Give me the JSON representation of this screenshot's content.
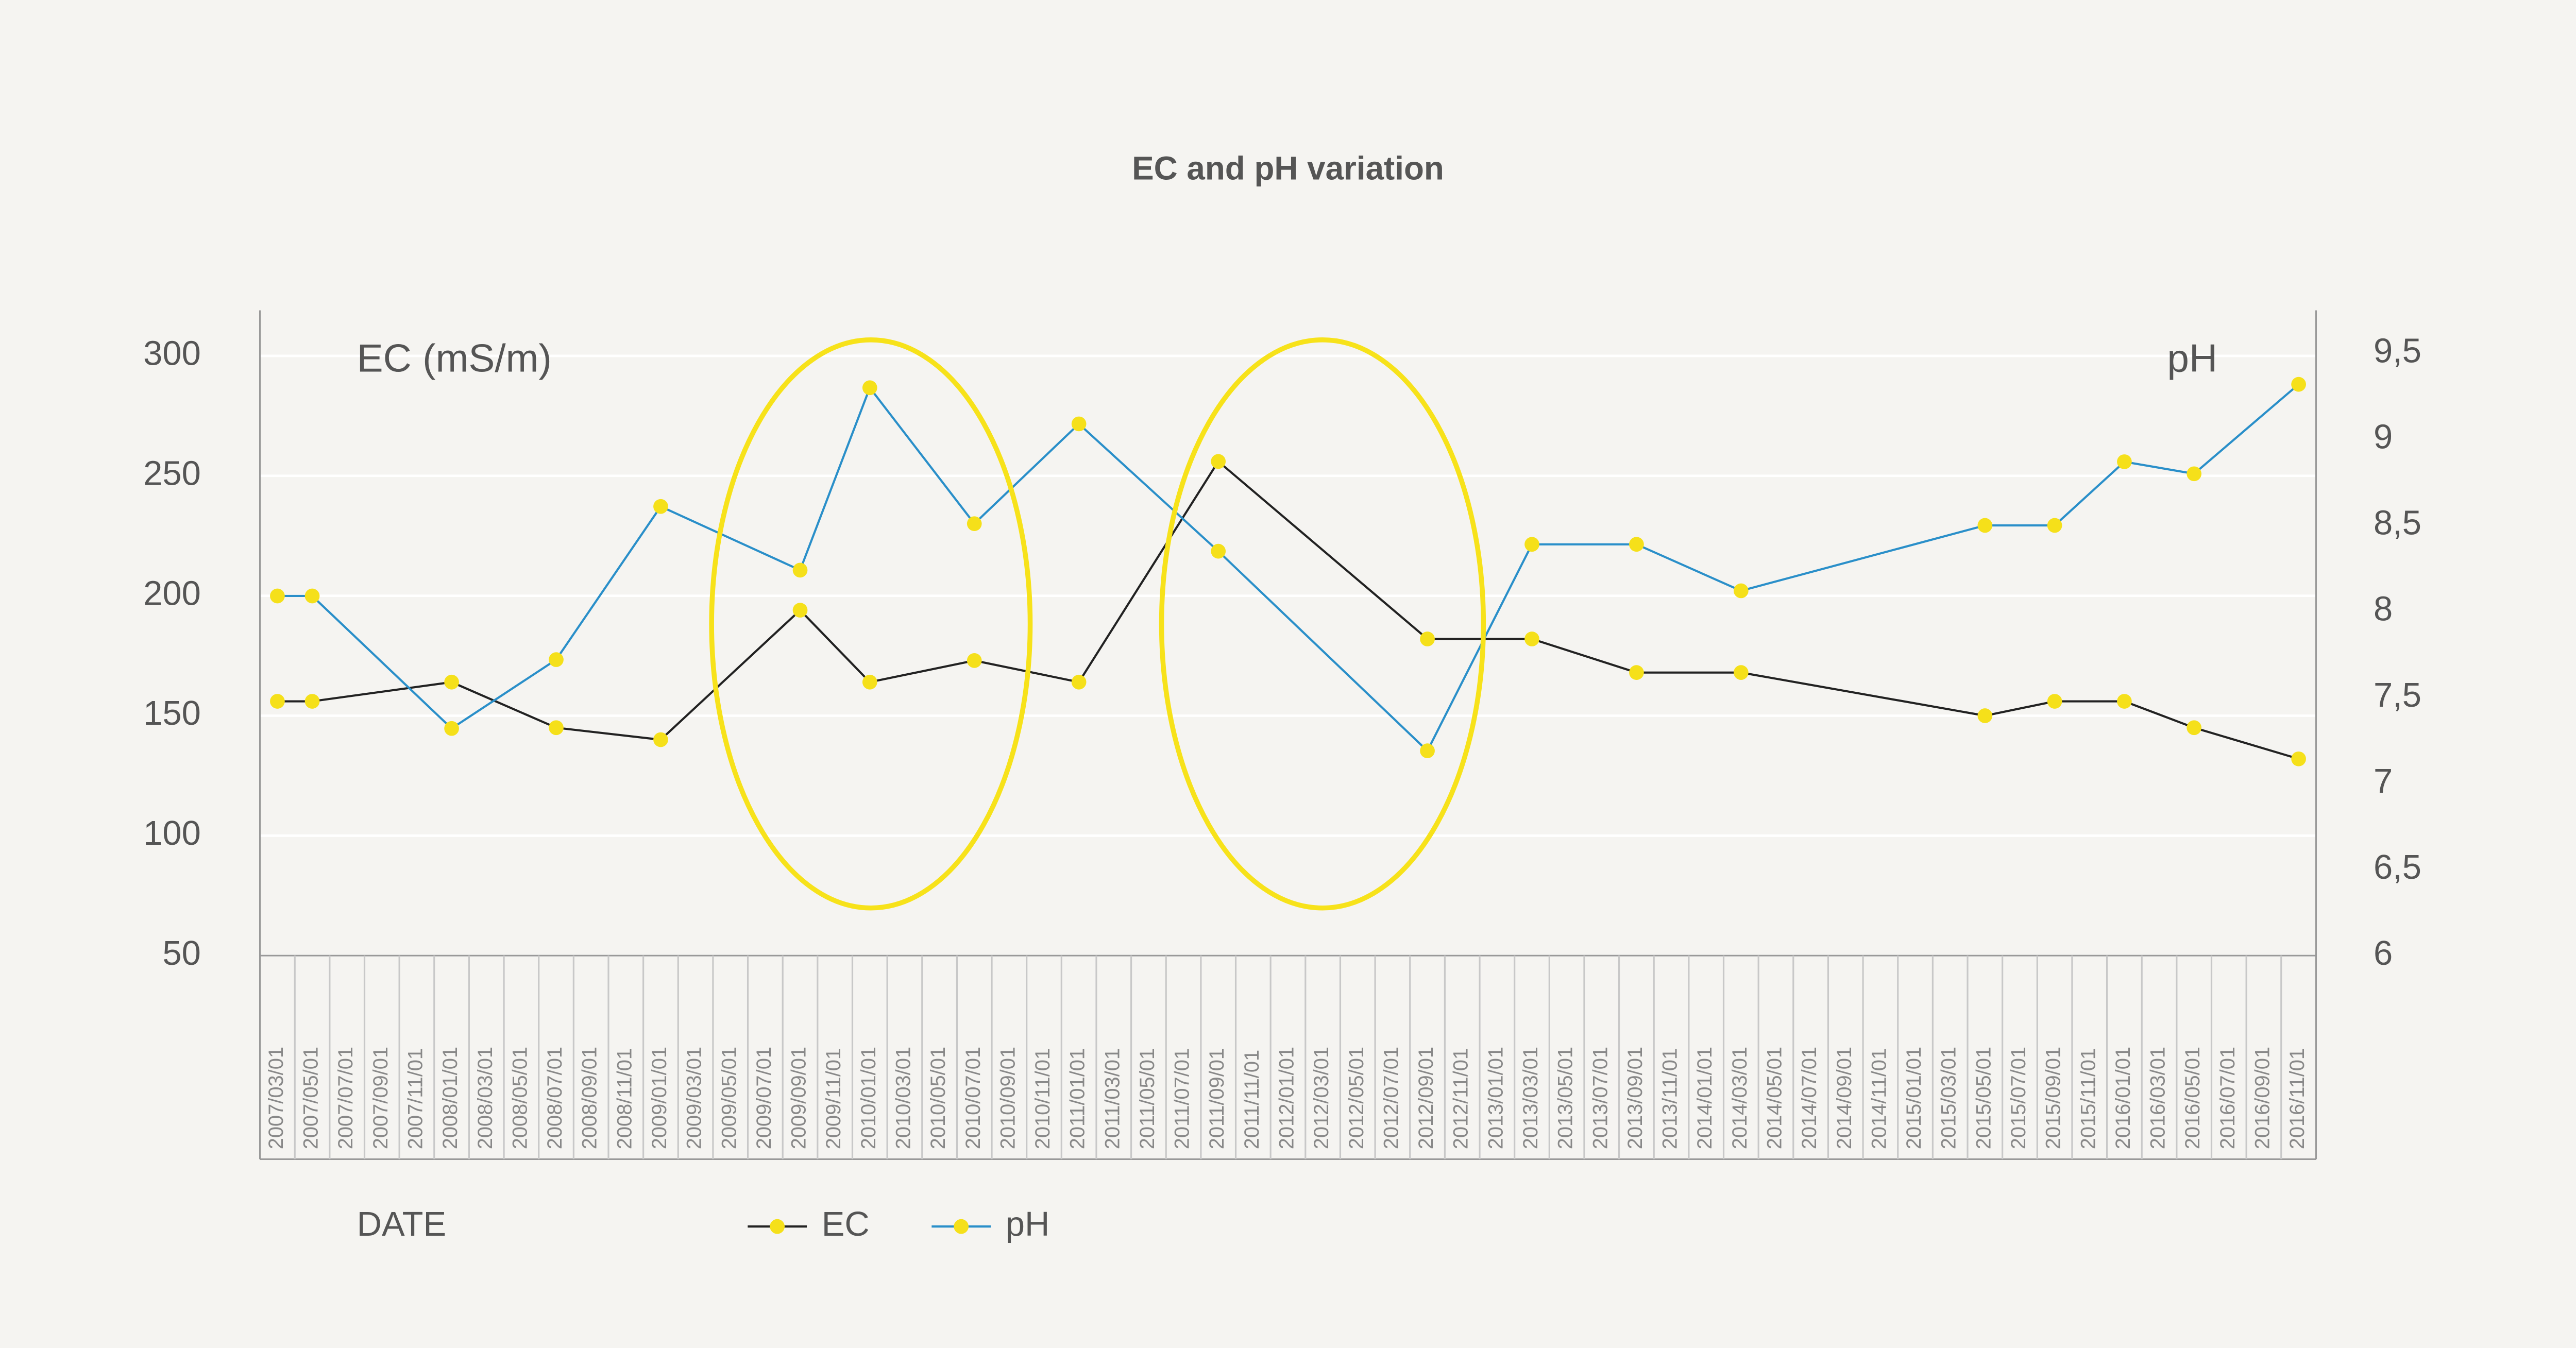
{
  "chart_data": {
    "type": "line",
    "title": "EC and pH variation",
    "y_label": "EC (mS/m)",
    "y2_label": "pH",
    "x_label": "DATE",
    "categories": [
      "2007/03/01",
      "2007/05/01",
      "2007/07/01",
      "2007/09/01",
      "2007/11/01",
      "2008/01/01",
      "2008/03/01",
      "2008/05/01",
      "2008/07/01",
      "2008/09/01",
      "2008/11/01",
      "2009/01/01",
      "2009/03/01",
      "2009/05/01",
      "2009/07/01",
      "2009/09/01",
      "2009/11/01",
      "2010/01/01",
      "2010/03/01",
      "2010/05/01",
      "2010/07/01",
      "2010/09/01",
      "2010/11/01",
      "2011/01/01",
      "2011/03/01",
      "2011/05/01",
      "2011/07/01",
      "2011/09/01",
      "2011/11/01",
      "2012/01/01",
      "2012/03/01",
      "2012/05/01",
      "2012/07/01",
      "2012/09/01",
      "2012/11/01",
      "2013/01/01",
      "2013/03/01",
      "2013/05/01",
      "2013/07/01",
      "2013/09/01",
      "2013/11/01",
      "2014/01/01",
      "2014/03/01",
      "2014/05/01",
      "2014/07/01",
      "2014/09/01",
      "2014/11/01",
      "2015/01/01",
      "2015/03/01",
      "2015/05/01",
      "2015/07/01",
      "2015/09/01",
      "2015/11/01",
      "2016/01/01",
      "2016/03/01",
      "2016/05/01",
      "2016/07/01",
      "2016/09/01",
      "2016/11/01"
    ],
    "series": [
      {
        "name": "EC",
        "color": "#222222",
        "marker_color": "#f5e01a",
        "axis": "y",
        "x": [
          "2007/03/01",
          "2007/05/01",
          "2008/01/01",
          "2008/07/01",
          "2009/01/01",
          "2009/09/01",
          "2010/01/01",
          "2010/07/01",
          "2011/01/01",
          "2011/09/01",
          "2012/09/01",
          "2013/03/01",
          "2013/09/01",
          "2014/03/01",
          "2015/05/01",
          "2015/09/01",
          "2016/01/01",
          "2016/05/01",
          "2016/11/01"
        ],
        "values": [
          156,
          156,
          164,
          145,
          140,
          194,
          164,
          173,
          164,
          256,
          182,
          182,
          168,
          168,
          150,
          156,
          156,
          145,
          132
        ]
      },
      {
        "name": "pH",
        "color": "#2a8fc9",
        "marker_color": "#f5e01a",
        "axis": "y2",
        "x": [
          "2007/03/01",
          "2007/05/01",
          "2008/01/01",
          "2008/07/01",
          "2009/01/01",
          "2009/09/01",
          "2010/01/01",
          "2010/07/01",
          "2011/01/01",
          "2011/09/01",
          "2012/09/01",
          "2013/03/01",
          "2013/09/01",
          "2014/03/01",
          "2015/05/01",
          "2015/09/01",
          "2016/01/01",
          "2016/05/01",
          "2016/11/01"
        ],
        "values": [
          8.09,
          8.09,
          7.32,
          7.72,
          8.61,
          8.24,
          9.3,
          8.51,
          9.09,
          8.35,
          7.19,
          8.39,
          8.39,
          8.12,
          8.5,
          8.5,
          8.87,
          8.8,
          9.32
        ]
      }
    ],
    "ylim": [
      50,
      319
    ],
    "yticks": [
      50,
      100,
      150,
      200,
      250,
      300
    ],
    "y2lim": [
      6,
      9.75
    ],
    "y2ticks": [
      6,
      {
        "value": 6.5,
        "label": "6,5"
      },
      7,
      {
        "value": 7.5,
        "label": "7,5"
      },
      8,
      {
        "value": 8.5,
        "label": "8,5"
      },
      9,
      {
        "value": 9.5,
        "label": "9,5"
      }
    ],
    "grid": true,
    "legend": "bottom"
  }
}
